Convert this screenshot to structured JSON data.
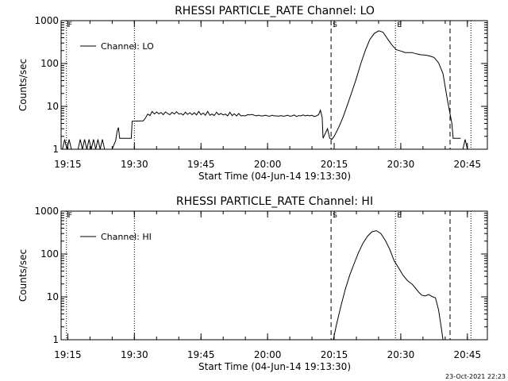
{
  "footer_stamp": "23-Oct-2021 22:23",
  "colors": {
    "line": "#000000",
    "background": "#ffffff"
  },
  "chart_data": [
    {
      "type": "line",
      "title": "RHESSI PARTICLE_RATE Channel: LO",
      "xlabel": "Start Time (04-Jun-14 19:13:30)",
      "ylabel": "Counts/sec",
      "yscale": "log",
      "ylim": [
        1,
        1000
      ],
      "xlim_minutes": [
        0,
        96
      ],
      "xticks": [
        "19:15",
        "19:30",
        "19:45",
        "20:00",
        "20:15",
        "20:30",
        "20:45"
      ],
      "xtick_minutes": [
        1.5,
        16.5,
        31.5,
        46.5,
        61.5,
        76.5,
        91.5
      ],
      "yticks": [
        "1",
        "10",
        "100",
        "1000"
      ],
      "ytick_values": [
        1,
        10,
        100,
        1000
      ],
      "legend": {
        "label": "Channel: LO",
        "position": "top-left"
      },
      "markers": [
        {
          "minute": 1.2,
          "style": "dotted",
          "label": "F"
        },
        {
          "minute": 16.5,
          "style": "dotted",
          "label": ""
        },
        {
          "minute": 60.8,
          "style": "dashed",
          "label": "S"
        },
        {
          "minute": 75.3,
          "style": "dotted",
          "label": "E"
        },
        {
          "minute": 87.6,
          "style": "dashed",
          "label": ""
        },
        {
          "minute": 92.3,
          "style": "dotted",
          "label": ""
        }
      ],
      "series": [
        {
          "name": "Channel: LO",
          "segments": [
            [
              [
                0.3,
                1
              ],
              [
                0.8,
                1.7
              ],
              [
                1.3,
                1
              ],
              [
                1.8,
                1.7
              ],
              [
                2.3,
                1
              ],
              [
                3.8,
                1
              ],
              [
                4.3,
                1.7
              ],
              [
                4.8,
                1
              ],
              [
                5.3,
                1.7
              ],
              [
                5.8,
                1
              ],
              [
                6.3,
                1.7
              ],
              [
                6.8,
                1
              ],
              [
                7.3,
                1.7
              ],
              [
                7.8,
                1
              ],
              [
                8.3,
                1.7
              ],
              [
                8.8,
                1
              ],
              [
                9.3,
                1.7
              ],
              [
                9.8,
                1
              ],
              [
                11.5,
                1
              ],
              [
                12.3,
                1.6
              ],
              [
                12.6,
                2.6
              ],
              [
                12.9,
                3.2
              ],
              [
                13.2,
                1.8
              ],
              [
                15.8,
                1.8
              ],
              [
                16.0,
                4.5
              ],
              [
                18.5,
                4.6
              ],
              [
                19.0,
                5.4
              ],
              [
                19.5,
                6.6
              ],
              [
                20.0,
                6.1
              ],
              [
                20.5,
                7.6
              ],
              [
                21.0,
                6.6
              ],
              [
                21.5,
                7.4
              ],
              [
                22.0,
                6.7
              ],
              [
                22.5,
                7.2
              ],
              [
                23.0,
                6.4
              ],
              [
                23.5,
                7.4
              ],
              [
                24.0,
                6.8
              ],
              [
                24.5,
                6.4
              ],
              [
                25.0,
                7.3
              ],
              [
                25.5,
                6.6
              ],
              [
                26.0,
                7.5
              ],
              [
                26.5,
                6.6
              ],
              [
                27.0,
                6.8
              ],
              [
                27.5,
                6.3
              ],
              [
                28.0,
                7.3
              ],
              [
                28.5,
                6.5
              ],
              [
                29.0,
                7.1
              ],
              [
                29.5,
                6.4
              ],
              [
                30.0,
                7.1
              ],
              [
                30.5,
                6.3
              ],
              [
                31.0,
                7.6
              ],
              [
                31.5,
                6.4
              ],
              [
                32.0,
                7.0
              ],
              [
                32.5,
                6.2
              ],
              [
                33.0,
                7.6
              ],
              [
                33.5,
                6.2
              ],
              [
                34.0,
                6.6
              ],
              [
                34.5,
                6.1
              ],
              [
                35.0,
                7.3
              ],
              [
                35.5,
                6.4
              ],
              [
                36.0,
                6.8
              ],
              [
                36.5,
                6.3
              ],
              [
                37.0,
                6.6
              ],
              [
                37.5,
                6.0
              ],
              [
                38.0,
                7.3
              ],
              [
                38.5,
                6.1
              ],
              [
                39.0,
                6.7
              ],
              [
                39.5,
                6.0
              ],
              [
                40.0,
                6.8
              ],
              [
                40.5,
                6.0
              ],
              [
                41.0,
                6.1
              ],
              [
                41.5,
                6.0
              ],
              [
                42.0,
                6.4
              ],
              [
                42.5,
                6.3
              ],
              [
                43.0,
                6.5
              ],
              [
                43.5,
                6.2
              ],
              [
                44.0,
                6.0
              ],
              [
                44.5,
                6.2
              ],
              [
                45.0,
                6.0
              ],
              [
                45.5,
                6.0
              ],
              [
                46.0,
                6.2
              ],
              [
                46.5,
                6.0
              ],
              [
                47.0,
                5.9
              ],
              [
                47.5,
                6.2
              ],
              [
                48.0,
                6.0
              ],
              [
                48.5,
                6.0
              ],
              [
                49.0,
                5.9
              ],
              [
                49.5,
                6.1
              ],
              [
                50.0,
                5.9
              ],
              [
                50.5,
                6.0
              ],
              [
                51.0,
                6.2
              ],
              [
                51.5,
                5.9
              ],
              [
                52.0,
                6.0
              ],
              [
                52.5,
                6.3
              ],
              [
                53.0,
                5.8
              ],
              [
                53.5,
                6.1
              ],
              [
                54.0,
                6.0
              ],
              [
                54.5,
                6.3
              ],
              [
                55.0,
                6.0
              ],
              [
                55.5,
                6.2
              ],
              [
                56.0,
                6.0
              ],
              [
                56.5,
                6.2
              ],
              [
                57.0,
                5.8
              ],
              [
                57.5,
                6.0
              ],
              [
                58.0,
                6.4
              ],
              [
                58.4,
                8.1
              ],
              [
                58.8,
                5.5
              ],
              [
                59.0,
                1.8
              ],
              [
                60.0,
                3.0
              ],
              [
                60.5,
                1.8
              ],
              [
                61.0,
                1.7
              ],
              [
                61.5,
                2.0
              ],
              [
                62.5,
                3.2
              ],
              [
                63.5,
                5.6
              ],
              [
                64.5,
                11
              ],
              [
                65.5,
                22
              ],
              [
                66.5,
                45
              ],
              [
                67.5,
                100
              ],
              [
                68.5,
                200
              ],
              [
                69.5,
                360
              ],
              [
                70.5,
                500
              ],
              [
                71.5,
                580
              ],
              [
                72.5,
                540
              ],
              [
                73.5,
                380
              ],
              [
                74.5,
                270
              ],
              [
                75.5,
                210
              ],
              [
                76.5,
                195
              ],
              [
                77.5,
                180
              ],
              [
                79,
                180
              ],
              [
                80,
                168
              ],
              [
                81,
                160
              ],
              [
                82,
                157
              ],
              [
                83,
                150
              ],
              [
                84,
                138
              ],
              [
                85,
                104
              ],
              [
                86,
                58
              ],
              [
                87,
                14
              ],
              [
                88,
                4
              ],
              [
                88.3,
                1.8
              ],
              [
                90.0,
                1.8
              ]
            ],
            [
              [
                90.5,
                1
              ],
              [
                91.0,
                1.7
              ],
              [
                91.5,
                1
              ]
            ]
          ]
        }
      ]
    },
    {
      "type": "line",
      "title": "RHESSI PARTICLE_RATE Channel: HI",
      "xlabel": "Start Time (04-Jun-14 19:13:30)",
      "ylabel": "Counts/sec",
      "yscale": "log",
      "ylim": [
        1,
        1000
      ],
      "xlim_minutes": [
        0,
        96
      ],
      "xticks": [
        "19:15",
        "19:30",
        "19:45",
        "20:00",
        "20:15",
        "20:30",
        "20:45"
      ],
      "xtick_minutes": [
        1.5,
        16.5,
        31.5,
        46.5,
        61.5,
        76.5,
        91.5
      ],
      "yticks": [
        "1",
        "10",
        "100",
        "1000"
      ],
      "ytick_values": [
        1,
        10,
        100,
        1000
      ],
      "legend": {
        "label": "Channel: HI",
        "position": "top-left"
      },
      "markers": [
        {
          "minute": 1.2,
          "style": "dotted",
          "label": "F"
        },
        {
          "minute": 16.5,
          "style": "dotted",
          "label": ""
        },
        {
          "minute": 60.8,
          "style": "dashed",
          "label": "S"
        },
        {
          "minute": 75.3,
          "style": "dotted",
          "label": "E"
        },
        {
          "minute": 87.6,
          "style": "dashed",
          "label": ""
        },
        {
          "minute": 92.3,
          "style": "dotted",
          "label": ""
        }
      ],
      "series": [
        {
          "name": "Channel: HI",
          "segments": [
            [
              [
                61.3,
                1
              ],
              [
                62.0,
                2.2
              ],
              [
                63.0,
                6
              ],
              [
                64.0,
                15
              ],
              [
                65.0,
                32
              ],
              [
                66.0,
                60
              ],
              [
                67.0,
                110
              ],
              [
                68.0,
                180
              ],
              [
                69.0,
                260
              ],
              [
                70.0,
                330
              ],
              [
                71.0,
                350
              ],
              [
                72.0,
                300
              ],
              [
                73.0,
                210
              ],
              [
                74.0,
                130
              ],
              [
                75.0,
                70
              ],
              [
                76.0,
                48
              ],
              [
                77.0,
                32
              ],
              [
                78.0,
                24
              ],
              [
                79.0,
                20
              ],
              [
                79.8,
                16
              ],
              [
                80.5,
                13
              ],
              [
                81.2,
                11
              ],
              [
                82.0,
                10.5
              ],
              [
                82.8,
                11.3
              ],
              [
                83.5,
                10.2
              ],
              [
                84.3,
                9.5
              ],
              [
                85.0,
                5
              ],
              [
                85.6,
                2
              ],
              [
                86.0,
                1
              ]
            ]
          ]
        }
      ]
    }
  ]
}
